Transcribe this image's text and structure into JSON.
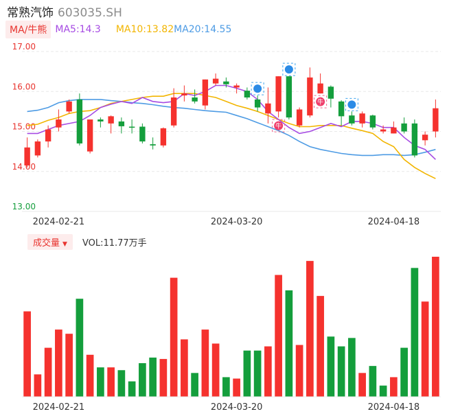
{
  "header": {
    "name": "常熟汽饰",
    "code": "603035.SH"
  },
  "ma": {
    "chip": "MA/牛熊",
    "ma5": "MA5:14.3",
    "ma10": "MA10:13.82",
    "ma20": "MA20:14.55"
  },
  "volume_header": {
    "chip": "成交量",
    "value": "VOL:11.77万手"
  },
  "colors": {
    "up": "#f5322e",
    "down": "#149e3c",
    "ma5": "#a64be3",
    "ma10": "#f2b500",
    "ma20": "#4d9be4",
    "grid": "#e9e9e9",
    "axis": "#e8342f"
  },
  "chart_data": [
    {
      "type": "candlestick",
      "ylim": [
        13,
        17
      ],
      "yticks": [
        "13.00",
        "14.00",
        "15.00",
        "16.00",
        "17.00"
      ],
      "xticks": [
        {
          "index": 3,
          "label": "2024-02-21"
        },
        {
          "index": 20,
          "label": "2024-03-20"
        },
        {
          "index": 35,
          "label": "2024-04-18"
        }
      ],
      "candles": [
        {
          "o": 14.15,
          "c": 14.6,
          "h": 14.85,
          "l": 14.1
        },
        {
          "o": 14.4,
          "c": 14.75,
          "h": 14.8,
          "l": 14.35
        },
        {
          "o": 14.75,
          "c": 15.05,
          "h": 15.15,
          "l": 14.6
        },
        {
          "o": 15.1,
          "c": 15.3,
          "h": 15.55,
          "l": 15.0
        },
        {
          "o": 15.5,
          "c": 15.75,
          "h": 15.8,
          "l": 15.45
        },
        {
          "o": 15.8,
          "c": 14.7,
          "h": 15.95,
          "l": 14.65
        },
        {
          "o": 14.5,
          "c": 15.3,
          "h": 15.3,
          "l": 14.45
        },
        {
          "o": 15.3,
          "c": 15.25,
          "h": 15.35,
          "l": 15.1
        },
        {
          "o": 15.2,
          "c": 15.38,
          "h": 15.4,
          "l": 14.95
        },
        {
          "o": 15.25,
          "c": 15.13,
          "h": 15.35,
          "l": 14.95
        },
        {
          "o": 15.12,
          "c": 15.1,
          "h": 15.3,
          "l": 14.95
        },
        {
          "o": 15.12,
          "c": 14.75,
          "h": 15.2,
          "l": 14.7
        },
        {
          "o": 14.68,
          "c": 14.65,
          "h": 14.85,
          "l": 14.55
        },
        {
          "o": 14.65,
          "c": 15.08,
          "h": 15.1,
          "l": 14.6
        },
        {
          "o": 15.15,
          "c": 15.85,
          "h": 16.08,
          "l": 15.1
        },
        {
          "o": 15.9,
          "c": 15.95,
          "h": 16.15,
          "l": 15.75
        },
        {
          "o": 15.85,
          "c": 15.75,
          "h": 16.05,
          "l": 15.7
        },
        {
          "o": 15.65,
          "c": 16.3,
          "h": 16.3,
          "l": 15.55
        },
        {
          "o": 16.2,
          "c": 16.32,
          "h": 16.45,
          "l": 16.15
        },
        {
          "o": 16.25,
          "c": 16.18,
          "h": 16.35,
          "l": 16.1
        },
        {
          "o": 16.1,
          "c": 16.15,
          "h": 16.2,
          "l": 15.95
        },
        {
          "o": 16.02,
          "c": 15.85,
          "h": 16.1,
          "l": 15.8
        },
        {
          "o": 15.8,
          "c": 15.6,
          "h": 15.9,
          "l": 15.5
        },
        {
          "o": 15.45,
          "c": 15.7,
          "h": 16.1,
          "l": 15.2
        },
        {
          "o": 15.5,
          "c": 16.38,
          "h": 16.38,
          "l": 15.35
        },
        {
          "o": 16.38,
          "c": 15.35,
          "h": 16.38,
          "l": 15.3
        },
        {
          "o": 15.15,
          "c": 15.55,
          "h": 15.6,
          "l": 15.1
        },
        {
          "o": 15.4,
          "c": 16.35,
          "h": 16.6,
          "l": 15.35
        },
        {
          "o": 15.95,
          "c": 16.2,
          "h": 16.45,
          "l": 15.95
        },
        {
          "o": 16.12,
          "c": 15.82,
          "h": 16.15,
          "l": 15.6
        },
        {
          "o": 15.75,
          "c": 15.38,
          "h": 15.78,
          "l": 15.15
        },
        {
          "o": 15.4,
          "c": 15.2,
          "h": 15.5,
          "l": 15.15
        },
        {
          "o": 15.2,
          "c": 15.45,
          "h": 15.5,
          "l": 15.1
        },
        {
          "o": 15.4,
          "c": 15.1,
          "h": 15.42,
          "l": 15.05
        },
        {
          "o": 15.0,
          "c": 15.05,
          "h": 15.15,
          "l": 14.95
        },
        {
          "o": 14.95,
          "c": 15.1,
          "h": 15.25,
          "l": 14.95
        },
        {
          "o": 15.2,
          "c": 15.0,
          "h": 15.35,
          "l": 14.95
        },
        {
          "o": 15.2,
          "c": 14.4,
          "h": 15.3,
          "l": 14.35
        },
        {
          "o": 14.78,
          "c": 14.92,
          "h": 15.0,
          "l": 14.65
        },
        {
          "o": 15.0,
          "c": 15.58,
          "h": 15.8,
          "l": 14.85
        }
      ],
      "ma5": [
        14.95,
        14.95,
        15.05,
        15.15,
        15.2,
        15.25,
        15.4,
        15.6,
        15.68,
        15.75,
        15.7,
        15.85,
        15.75,
        15.72,
        15.75,
        15.95,
        15.9,
        16.0,
        16.15,
        16.15,
        16.08,
        16.0,
        15.8,
        15.5,
        15.3,
        15.1,
        14.95,
        15.0,
        15.1,
        15.2,
        15.12,
        15.25,
        15.25,
        15.2,
        15.1,
        15.1,
        14.85,
        14.65,
        14.55,
        14.3
      ],
      "ma10": [
        15.15,
        15.18,
        15.28,
        15.35,
        15.45,
        15.5,
        15.52,
        15.6,
        15.7,
        15.75,
        15.8,
        15.85,
        15.88,
        15.88,
        15.95,
        15.95,
        15.95,
        15.9,
        15.85,
        15.75,
        15.65,
        15.58,
        15.5,
        15.4,
        15.3,
        15.2,
        15.12,
        15.12,
        15.15,
        15.15,
        15.15,
        15.08,
        15.02,
        14.95,
        14.75,
        14.62,
        14.3,
        14.1,
        13.95,
        13.82
      ],
      "ma20": [
        15.5,
        15.53,
        15.6,
        15.72,
        15.77,
        15.8,
        15.8,
        15.8,
        15.77,
        15.75,
        15.72,
        15.7,
        15.67,
        15.63,
        15.6,
        15.58,
        15.55,
        15.52,
        15.5,
        15.48,
        15.4,
        15.32,
        15.22,
        15.12,
        15.02,
        14.9,
        14.75,
        14.62,
        14.55,
        14.5,
        14.45,
        14.42,
        14.4,
        14.4,
        14.42,
        14.42,
        14.4,
        14.42,
        14.48,
        14.55
      ],
      "markers": [
        {
          "index": 22,
          "kind": "blue"
        },
        {
          "index": 24,
          "kind": "red",
          "text": "牛"
        },
        {
          "index": 25,
          "kind": "blue"
        },
        {
          "index": 28,
          "kind": "red",
          "text": "牛"
        },
        {
          "index": 31,
          "kind": "blue"
        }
      ]
    },
    {
      "type": "bar",
      "title": "成交量",
      "values": [
        61,
        16,
        35,
        48,
        45,
        70,
        30,
        21,
        21,
        19,
        11,
        24,
        28,
        27,
        85,
        41,
        17,
        48,
        38,
        14,
        13,
        33,
        33,
        36,
        87,
        76,
        37,
        97,
        72,
        43,
        36,
        42,
        17,
        22,
        8,
        14,
        35,
        92,
        68,
        100
      ],
      "up": [
        true,
        true,
        true,
        true,
        true,
        false,
        true,
        false,
        true,
        false,
        false,
        false,
        false,
        true,
        true,
        true,
        false,
        true,
        true,
        false,
        true,
        false,
        false,
        true,
        true,
        false,
        true,
        true,
        true,
        false,
        false,
        false,
        true,
        false,
        false,
        true,
        false,
        false,
        true,
        true
      ],
      "xticks": [
        {
          "index": 3,
          "label": "2024-02-21"
        },
        {
          "index": 20,
          "label": "2024-03-20"
        },
        {
          "index": 35,
          "label": "2024-04-18"
        }
      ]
    }
  ]
}
